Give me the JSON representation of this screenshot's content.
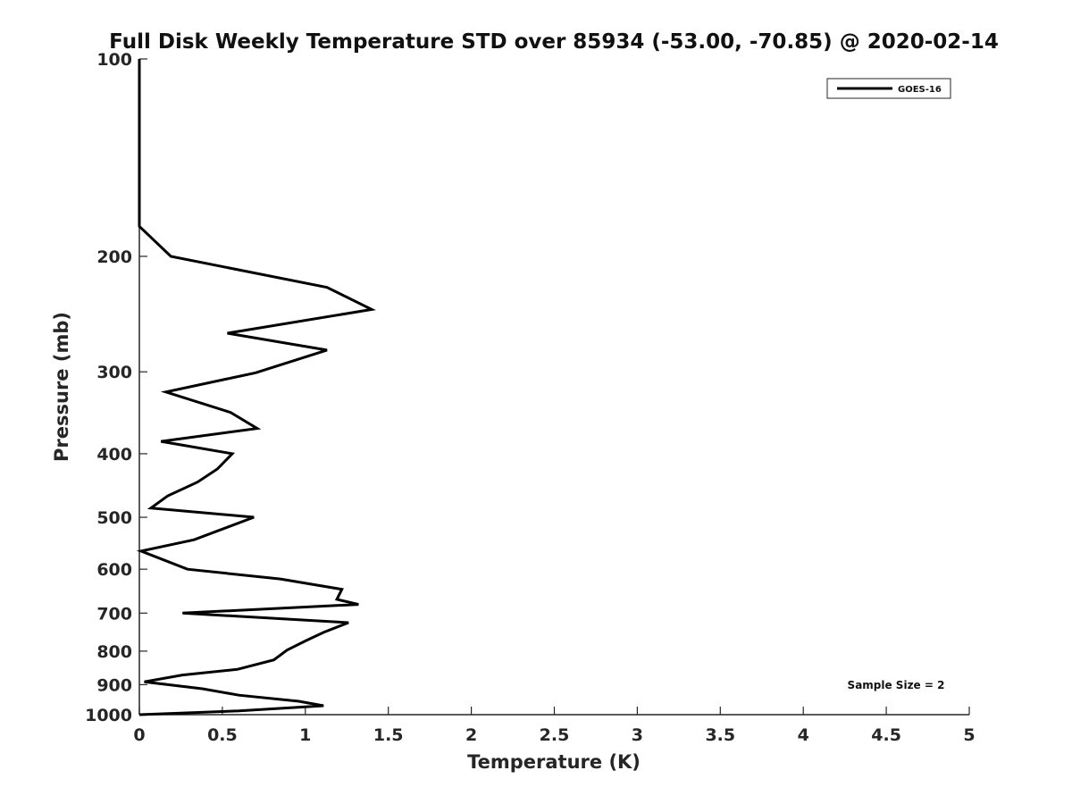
{
  "chart_data": {
    "type": "line",
    "title": "Full Disk Weekly Temperature STD over 85934 (-53.00, -70.85) @ 2020-02-14",
    "xlabel": "Temperature (K)",
    "ylabel": "Pressure (mb)",
    "xlim": [
      0,
      5
    ],
    "ylim": [
      100,
      1000
    ],
    "yscale": "log",
    "yreversed": true,
    "x_ticks": [
      0,
      0.5,
      1,
      1.5,
      2,
      2.5,
      3,
      3.5,
      4,
      4.5,
      5
    ],
    "x_tick_labels": [
      "0",
      "0.5",
      "1",
      "1.5",
      "2",
      "2.5",
      "3",
      "3.5",
      "4",
      "4.5",
      "5"
    ],
    "y_ticks": [
      100,
      200,
      300,
      400,
      500,
      600,
      700,
      800,
      900,
      1000
    ],
    "y_tick_labels": [
      "100",
      "200",
      "300",
      "400",
      "500",
      "600",
      "700",
      "800",
      "900",
      "1000"
    ],
    "grid": false,
    "legend_position": "top-right",
    "series": [
      {
        "name": "GOES-16",
        "color": "#000000",
        "points": [
          [
            0,
            100
          ],
          [
            0,
            180
          ],
          [
            0.19,
            200
          ],
          [
            1.13,
            223
          ],
          [
            1.4,
            241
          ],
          [
            0.53,
            262
          ],
          [
            1.13,
            278
          ],
          [
            0.7,
            301
          ],
          [
            0.16,
            322
          ],
          [
            0.55,
            346
          ],
          [
            0.71,
            366
          ],
          [
            0.13,
            383
          ],
          [
            0.56,
            400
          ],
          [
            0.47,
            422
          ],
          [
            0.35,
            442
          ],
          [
            0.17,
            464
          ],
          [
            0.07,
            484
          ],
          [
            0.69,
            500
          ],
          [
            0.33,
            541
          ],
          [
            0.01,
            563
          ],
          [
            0.29,
            600
          ],
          [
            0.85,
            621
          ],
          [
            1.22,
            644
          ],
          [
            1.19,
            667
          ],
          [
            1.32,
            679
          ],
          [
            0.26,
            700
          ],
          [
            1.26,
            724
          ],
          [
            1.11,
            749
          ],
          [
            1.0,
            772
          ],
          [
            0.89,
            797
          ],
          [
            0.81,
            825
          ],
          [
            0.59,
            853
          ],
          [
            0.26,
            870
          ],
          [
            0.03,
            891
          ],
          [
            0.38,
            913
          ],
          [
            0.6,
            934
          ],
          [
            0.96,
            954
          ],
          [
            1.11,
            969
          ],
          [
            0.6,
            987
          ],
          [
            0,
            1000
          ]
        ]
      }
    ],
    "annotations": [
      "Sample Size = 2"
    ]
  }
}
